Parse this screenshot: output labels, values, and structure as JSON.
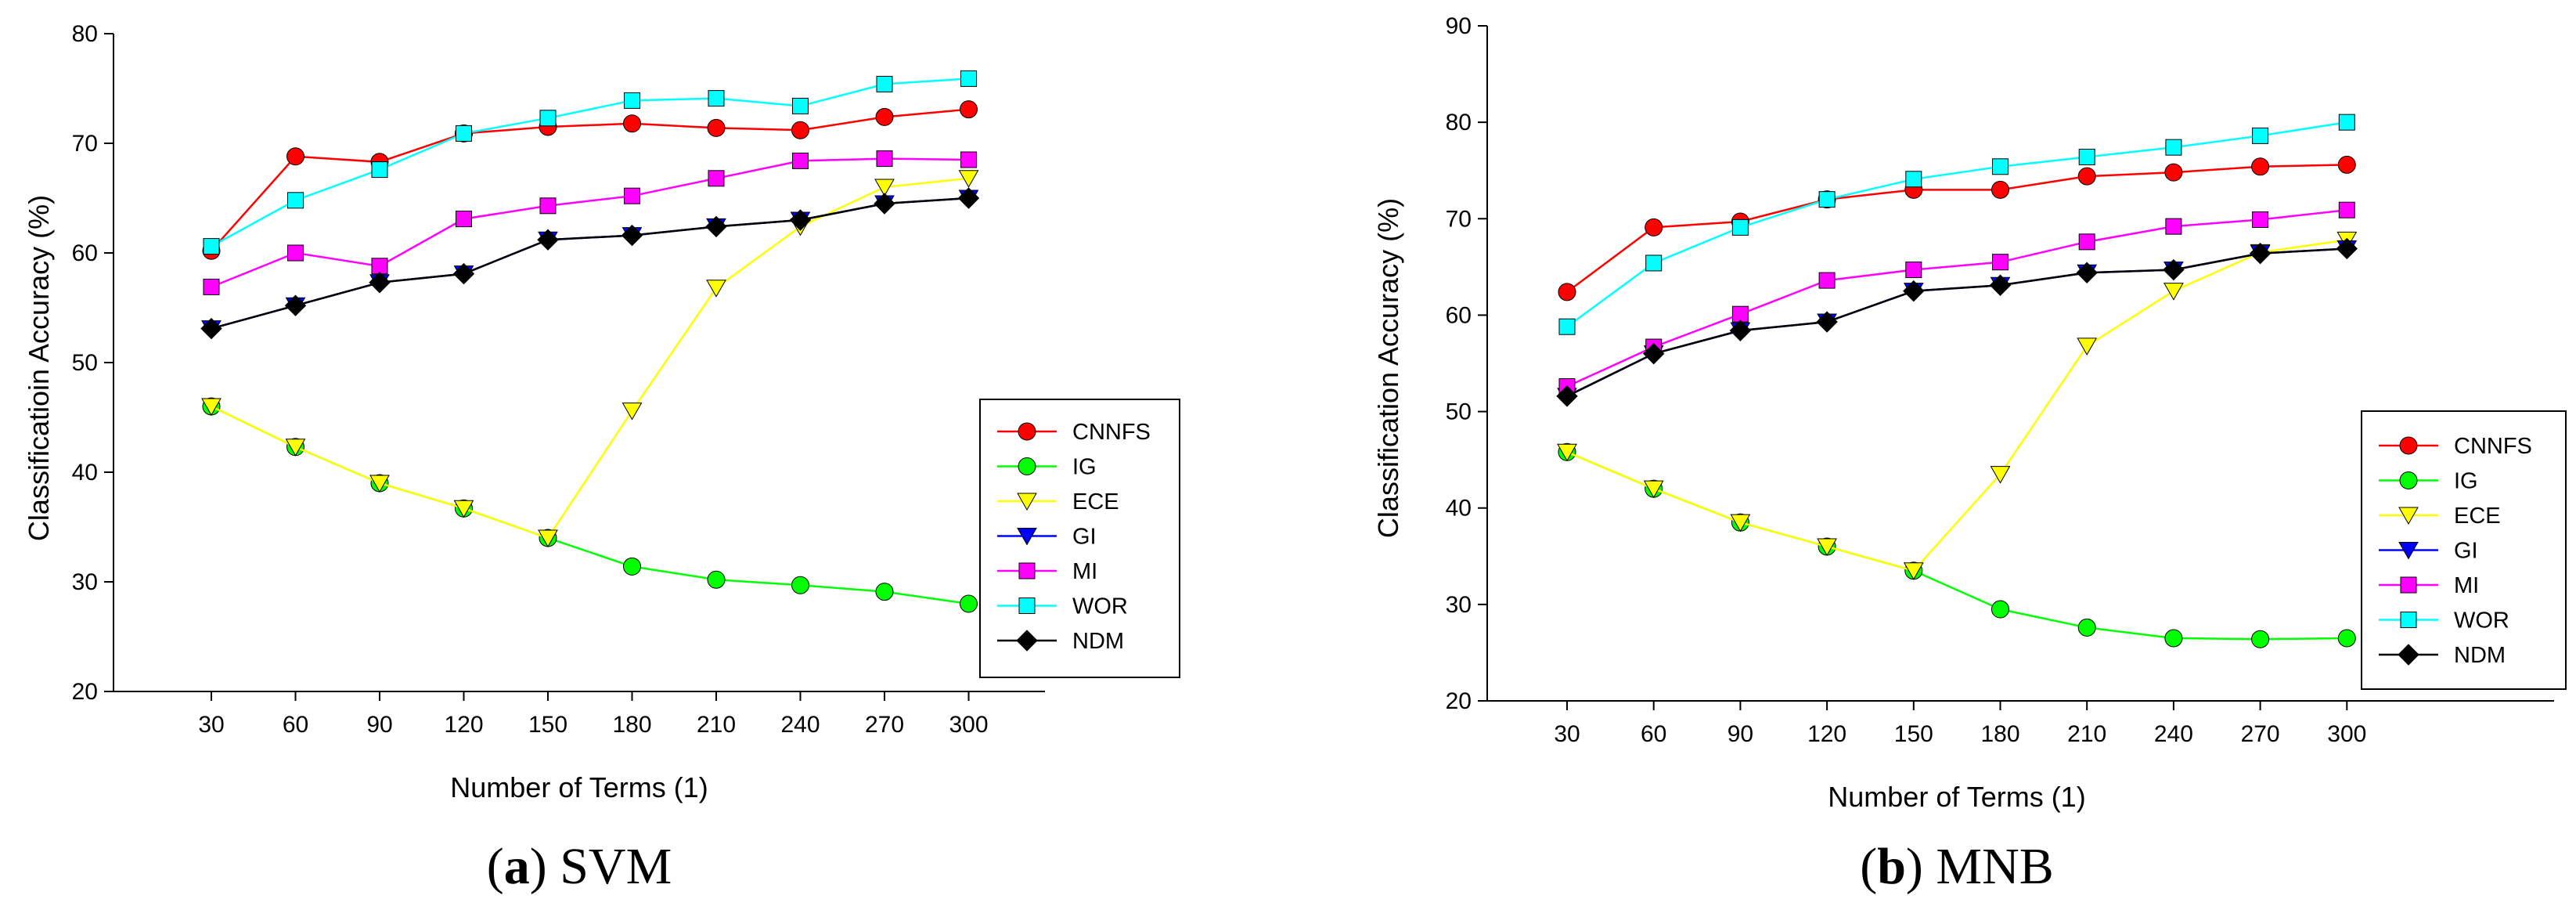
{
  "chart_data": [
    {
      "type": "line",
      "caption_letter": "a",
      "caption_text": "SVM",
      "xlabel": "Number of Terms (1)",
      "ylabel": "Classificatioin Accuracy (%)",
      "x": [
        30,
        60,
        90,
        120,
        150,
        180,
        210,
        240,
        270,
        300
      ],
      "ylim": [
        20,
        80
      ],
      "yticks": [
        20,
        30,
        40,
        50,
        60,
        70,
        80
      ],
      "legend_position": "right",
      "series": [
        {
          "name": "CNNFS",
          "color": "#ff0000",
          "marker": "circle",
          "values": [
            60.2,
            68.8,
            68.3,
            70.9,
            71.5,
            71.8,
            71.4,
            71.2,
            72.4,
            73.1
          ]
        },
        {
          "name": "IG",
          "color": "#00ff00",
          "marker": "circle",
          "values": [
            46.0,
            42.3,
            39.0,
            36.7,
            34.0,
            31.4,
            30.2,
            29.7,
            29.1,
            28.0
          ]
        },
        {
          "name": "ECE",
          "color": "#ffff00",
          "marker": "triangle-down",
          "values": [
            46.0,
            42.3,
            39.0,
            36.7,
            34.0,
            45.6,
            56.8,
            62.4,
            66.0,
            66.8
          ]
        },
        {
          "name": "GI",
          "color": "#0000ff",
          "marker": "triangle-down",
          "values": [
            53.1,
            55.2,
            57.3,
            58.1,
            61.2,
            61.6,
            62.4,
            63.0,
            64.5,
            65.0
          ]
        },
        {
          "name": "MI",
          "color": "#ff00ff",
          "marker": "square",
          "values": [
            56.9,
            60.0,
            58.8,
            63.1,
            64.3,
            65.2,
            66.8,
            68.4,
            68.6,
            68.5
          ]
        },
        {
          "name": "WOR",
          "color": "#00ffff",
          "marker": "square",
          "values": [
            60.6,
            64.8,
            67.6,
            70.9,
            72.3,
            73.9,
            74.1,
            73.4,
            75.4,
            75.9
          ]
        },
        {
          "name": "NDM",
          "color": "#000000",
          "marker": "diamond",
          "values": [
            53.1,
            55.2,
            57.3,
            58.1,
            61.2,
            61.6,
            62.4,
            63.0,
            64.5,
            65.0
          ]
        }
      ]
    },
    {
      "type": "line",
      "caption_letter": "b",
      "caption_text": "MNB",
      "xlabel": "Number of Terms (1)",
      "ylabel": "Classification Accuracy (%)",
      "x": [
        30,
        60,
        90,
        120,
        150,
        180,
        210,
        240,
        270,
        300
      ],
      "ylim": [
        20,
        90
      ],
      "yticks": [
        20,
        30,
        40,
        50,
        60,
        70,
        80,
        90
      ],
      "legend_position": "bottom-right",
      "series": [
        {
          "name": "CNNFS",
          "color": "#ff0000",
          "marker": "circle",
          "values": [
            62.4,
            69.1,
            69.7,
            72.0,
            73.0,
            73.0,
            74.4,
            74.8,
            75.4,
            75.6
          ]
        },
        {
          "name": "IG",
          "color": "#00ff00",
          "marker": "circle",
          "values": [
            45.8,
            42.0,
            38.5,
            36.0,
            33.5,
            29.5,
            27.6,
            26.5,
            26.4,
            26.5
          ]
        },
        {
          "name": "ECE",
          "color": "#ffff00",
          "marker": "triangle-down",
          "values": [
            45.8,
            42.0,
            38.5,
            36.0,
            33.5,
            43.5,
            56.8,
            62.5,
            66.5,
            67.8
          ]
        },
        {
          "name": "GI",
          "color": "#0000ff",
          "marker": "triangle-down",
          "values": [
            51.6,
            56.0,
            58.4,
            59.3,
            62.5,
            63.1,
            64.4,
            64.7,
            66.4,
            66.9
          ]
        },
        {
          "name": "MI",
          "color": "#ff00ff",
          "marker": "square",
          "values": [
            52.6,
            56.7,
            60.1,
            63.6,
            64.7,
            65.5,
            67.6,
            69.2,
            69.9,
            70.9
          ]
        },
        {
          "name": "WOR",
          "color": "#00ffff",
          "marker": "square",
          "values": [
            58.8,
            65.4,
            69.1,
            72.0,
            74.1,
            75.4,
            76.4,
            77.4,
            78.6,
            80.0
          ]
        },
        {
          "name": "NDM",
          "color": "#000000",
          "marker": "diamond",
          "values": [
            51.6,
            56.0,
            58.4,
            59.3,
            62.5,
            63.1,
            64.4,
            64.7,
            66.4,
            66.9
          ]
        }
      ]
    }
  ]
}
